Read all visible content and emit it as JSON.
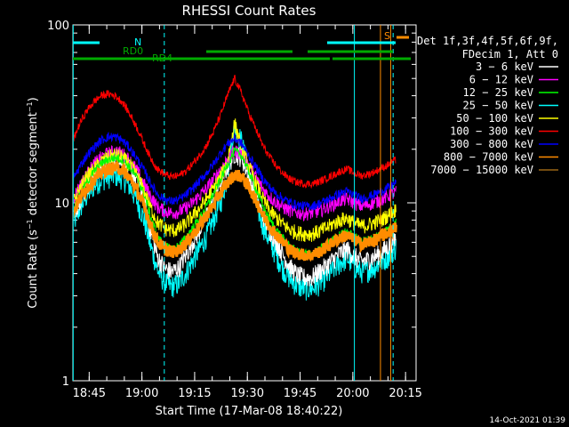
{
  "chart_data": {
    "type": "line",
    "title": "RHESSI Count Rates",
    "xlabel": "Start Time (17-Mar-08 18:40:22)",
    "ylabel": "Count Rate (s⁻¹ detector segment⁻¹)",
    "ylabel_main": "Count Rate (s",
    "ylabel_sup1": "−1",
    "ylabel_mid": " detector segment",
    "ylabel_sup2": "−1",
    "ylabel_end": ")",
    "yscale": "log",
    "ylim": [
      1,
      100
    ],
    "xlim": [
      "18:40:22",
      "20:18:00"
    ],
    "x_ticks": [
      "18:45",
      "19:00",
      "19:15",
      "19:30",
      "19:45",
      "20:00",
      "20:15"
    ],
    "y_ticks": [
      "1",
      "10",
      "100"
    ],
    "legend_header": [
      "Det 1f,3f,4f,5f,6f,9f,",
      "FDecim 1, Att 0"
    ],
    "legend_placement": "right",
    "x_minutes": [
      0,
      2,
      4,
      6,
      8,
      10,
      12,
      14,
      16,
      18,
      20,
      22,
      24,
      26,
      28,
      30,
      32,
      34,
      36,
      38,
      40,
      42,
      44,
      46,
      48,
      50,
      52,
      54,
      56,
      58,
      60,
      62,
      64,
      66,
      68,
      70,
      72,
      74,
      76,
      78,
      80,
      82,
      84,
      86,
      88,
      90,
      92
    ],
    "series": [
      {
        "name": "3 − 6 keV",
        "color": "#ffffff",
        "values": [
          8.5,
          10.5,
          12.5,
          14.5,
          16,
          17,
          17.5,
          17,
          15.5,
          13.5,
          11,
          7,
          5,
          4.3,
          4.1,
          4.3,
          5,
          6,
          7,
          8.5,
          10.5,
          13,
          16,
          19,
          18,
          14,
          11,
          8.5,
          7,
          6,
          5,
          4.3,
          3.9,
          3.8,
          3.8,
          4.1,
          4.4,
          4.8,
          5.2,
          5.5,
          5,
          4.7,
          4.8,
          5,
          5.3,
          5.8,
          6.4
        ]
      },
      {
        "name": "6 − 12 keV",
        "color": "#ff00ff",
        "values": [
          10.5,
          12.5,
          14.5,
          16.5,
          18,
          19,
          19.5,
          19,
          17.5,
          15.5,
          13,
          11,
          9.5,
          9,
          8.8,
          8.9,
          9.3,
          10,
          11,
          12,
          13.5,
          15.5,
          17.5,
          19.5,
          19,
          16.5,
          14,
          12,
          10.8,
          10,
          9.4,
          9,
          8.8,
          8.7,
          8.8,
          9,
          9.4,
          9.8,
          10.3,
          10.5,
          10,
          9.6,
          9.8,
          10.1,
          10.5,
          11,
          11.5
        ]
      },
      {
        "name": "12 − 25 keV",
        "color": "#00ff00",
        "values": [
          9,
          11,
          13,
          15,
          16.5,
          17.5,
          18,
          17.5,
          16,
          14,
          11.5,
          8.5,
          6.5,
          5.7,
          5.5,
          5.7,
          6.3,
          7.2,
          8.2,
          9.5,
          11.2,
          13.5,
          16.5,
          19.5,
          18.5,
          15,
          12,
          9.6,
          8,
          7,
          6.2,
          5.6,
          5.3,
          5.2,
          5.2,
          5.4,
          5.8,
          6.2,
          6.6,
          6.9,
          6.4,
          6.1,
          6.2,
          6.4,
          6.8,
          7.2,
          7.8
        ]
      },
      {
        "name": "25 − 50 keV",
        "color": "#00ffff",
        "values": [
          7.5,
          9.3,
          11,
          12.5,
          13.5,
          14,
          14.3,
          13.8,
          12.5,
          10.5,
          8.3,
          5.8,
          4.2,
          3.6,
          3.4,
          3.5,
          4,
          4.7,
          5.5,
          6.5,
          8,
          10,
          14,
          27,
          22,
          14,
          10,
          7.5,
          6,
          5,
          4.2,
          3.7,
          3.4,
          3.3,
          3.3,
          3.5,
          3.8,
          4.2,
          4.6,
          4.9,
          4.4,
          4.1,
          4.2,
          4.4,
          4.7,
          5.1,
          5.6
        ]
      },
      {
        "name": "50 − 100 keV",
        "color": "#ffff00",
        "values": [
          10,
          12,
          14,
          15.5,
          17,
          18,
          18.5,
          18,
          16.5,
          14.5,
          12,
          9.5,
          7.8,
          7.2,
          7,
          7.1,
          7.6,
          8.4,
          9.3,
          10.5,
          12,
          14,
          17,
          28,
          20,
          16,
          13,
          10.5,
          9,
          8.2,
          7.5,
          7,
          6.8,
          6.7,
          6.7,
          6.9,
          7.2,
          7.6,
          8,
          8.2,
          7.7,
          7.4,
          7.5,
          7.8,
          8.1,
          8.6,
          9.2
        ]
      },
      {
        "name": "100 − 300 keV",
        "color": "#ff0000",
        "values": [
          22,
          28,
          33,
          37,
          40,
          41,
          40,
          37,
          32,
          27,
          22,
          18,
          15.5,
          14.5,
          14,
          14.2,
          15,
          16.5,
          18.5,
          21,
          25,
          31,
          40,
          50,
          41,
          32,
          26,
          21,
          18,
          16,
          14.5,
          13.5,
          13,
          12.8,
          12.8,
          13.1,
          13.7,
          14.3,
          15,
          15.5,
          14.7,
          14.2,
          14.5,
          15,
          15.7,
          16.5,
          17.5
        ]
      },
      {
        "name": "300 − 800 keV",
        "color": "#0000ff",
        "values": [
          13.5,
          16,
          18.5,
          20.5,
          22.5,
          23.5,
          23.5,
          22.5,
          20.5,
          18,
          15.5,
          13,
          11.2,
          10.5,
          10.2,
          10.4,
          11,
          12,
          13.2,
          14.7,
          16.5,
          19,
          21.5,
          23,
          21.5,
          18.5,
          16,
          13.7,
          12.2,
          11.2,
          10.5,
          10,
          9.7,
          9.6,
          9.6,
          9.9,
          10.3,
          10.8,
          11.3,
          11.6,
          11,
          10.6,
          10.8,
          11.2,
          11.7,
          12.3,
          13
        ]
      },
      {
        "name": "800 − 7000 keV",
        "color": "#ff8c00",
        "values": [
          8.8,
          10.5,
          12.2,
          13.5,
          14.8,
          15.5,
          15.8,
          15.3,
          14,
          12,
          9.8,
          7.6,
          6.1,
          5.5,
          5.3,
          5.4,
          5.9,
          6.6,
          7.4,
          8.5,
          9.8,
          11.4,
          13,
          14.5,
          14,
          12.3,
          10.4,
          8.6,
          7.4,
          6.6,
          5.9,
          5.4,
          5.2,
          5.1,
          5.1,
          5.3,
          5.6,
          6,
          6.4,
          6.6,
          6.2,
          5.9,
          6,
          6.2,
          6.5,
          6.9,
          7.3
        ]
      },
      {
        "name": "7000 − 15000 keV",
        "color": "#996515",
        "values": []
      }
    ],
    "annotations": {
      "attenuator_bars": [
        {
          "label": "N",
          "color": "#00ffff",
          "y": 75,
          "x_start": 0,
          "x_end": 30
        },
        {
          "label": "",
          "color": "#00ffff",
          "y": 75,
          "x_start": 286,
          "x_end": 363
        }
      ],
      "decimation_bars": [
        {
          "label": "RD0",
          "color": "#00aa00",
          "y": 70,
          "x_start": 150,
          "x_end": 247
        },
        {
          "label": "",
          "color": "#00aa00",
          "y": 70,
          "x_start": 264,
          "x_end": 360
        }
      ],
      "rate_bars": [
        {
          "label": "RD4",
          "color": "#00aa00",
          "y": 63,
          "x_start": 0,
          "x_end": 153
        },
        {
          "label": "",
          "color": "#00aa00",
          "y": 63,
          "x_start": 153,
          "x_end": 289
        },
        {
          "label": "",
          "color": "#00aa00",
          "y": 63,
          "x_start": 292,
          "x_end": 380
        }
      ],
      "saa": {
        "label": "S",
        "color": "#ff8c00"
      },
      "vertical_lines": [
        {
          "x": 0.08,
          "color": "#00ffff",
          "style": "solid"
        },
        {
          "x": 26,
          "color": "#00ffff",
          "style": "dashed"
        },
        {
          "x": 80.08,
          "color": "#00ffff",
          "style": "solid"
        },
        {
          "x": 87.5,
          "color": "#ff8c00",
          "style": "solid"
        },
        {
          "x": 90.4,
          "color": "#ff8c00",
          "style": "solid"
        },
        {
          "x": 91.1,
          "color": "#00ffff",
          "style": "dashed"
        }
      ]
    },
    "timestamp": "14-Oct-2021 01:39"
  }
}
